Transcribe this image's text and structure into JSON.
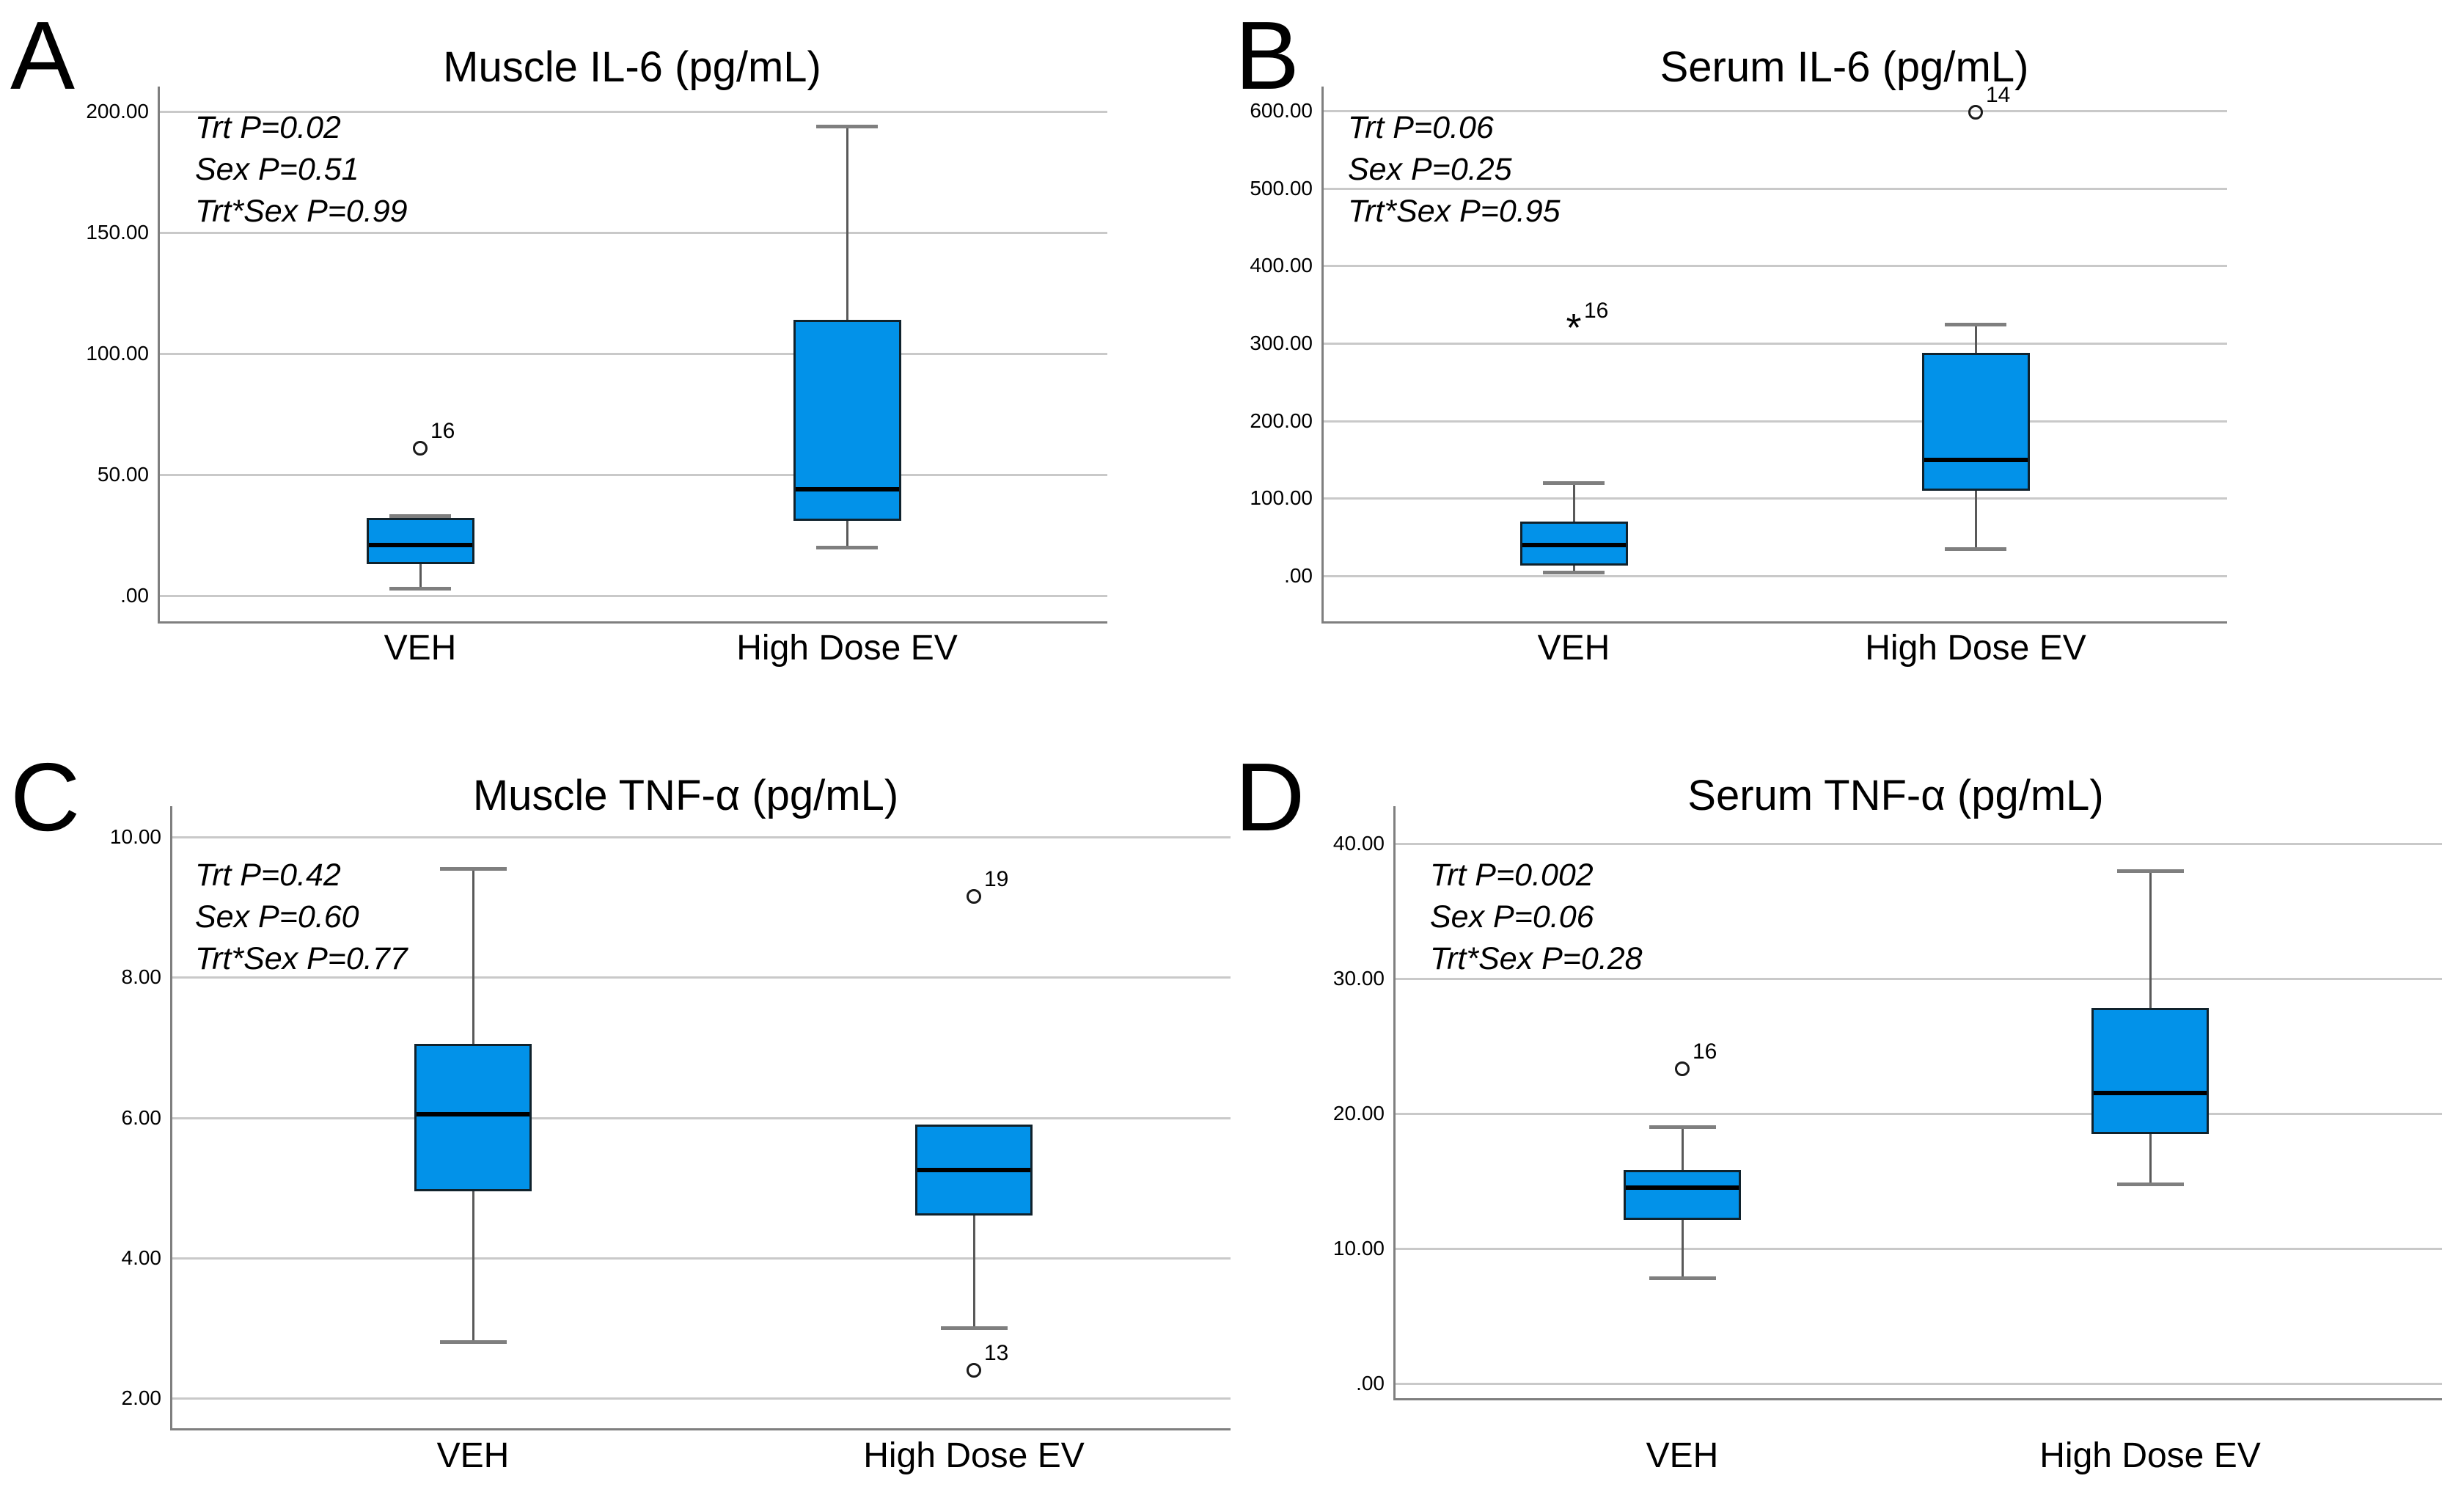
{
  "figure_caption": "",
  "colors": {
    "background": "#ffffff",
    "box_fill": "#0292e9",
    "box_border": "#10222c",
    "median_line": "#000000",
    "whisker": "#595959",
    "whisker_cap": "#7f7f7f",
    "gridline": "#c9c9c9",
    "axis_spine": "#7f7f7f",
    "text": "#000000"
  },
  "chart_data": [
    {
      "type": "box",
      "panel_letter": "A",
      "title": "Muscle IL-6 (pg/mL)",
      "stats_annotations": [
        "Trt P=0.02",
        "Sex P=0.51",
        "Trt*Sex P=0.99"
      ],
      "categories": [
        "VEH",
        "High Dose EV"
      ],
      "ylabel": "",
      "ylim": [
        0,
        200
      ],
      "grid": "horizontal",
      "yticks": [
        {
          "value": 0,
          "label": ".00"
        },
        {
          "value": 50,
          "label": "50.00"
        },
        {
          "value": 100,
          "label": "100.00"
        },
        {
          "value": 150,
          "label": "150.00"
        },
        {
          "value": 200,
          "label": "200.00"
        }
      ],
      "series": [
        {
          "category": "VEH",
          "whisker_low": 3,
          "q1": 13,
          "median": 21,
          "q3": 32,
          "whisker_high": 33,
          "outliers": [
            {
              "value": 61,
              "label": "16",
              "marker": "circle"
            }
          ]
        },
        {
          "category": "High Dose EV",
          "whisker_low": 20,
          "q1": 31,
          "median": 44,
          "q3": 114,
          "whisker_high": 194,
          "outliers": []
        }
      ]
    },
    {
      "type": "box",
      "panel_letter": "B",
      "title": "Serum IL-6 (pg/mL)",
      "stats_annotations": [
        "Trt P=0.06",
        "Sex P=0.25",
        "Trt*Sex P=0.95"
      ],
      "categories": [
        "VEH",
        "High Dose EV"
      ],
      "ylabel": "",
      "ylim": [
        0,
        600
      ],
      "grid": "horizontal",
      "yticks": [
        {
          "value": 0,
          "label": ".00"
        },
        {
          "value": 100,
          "label": "100.00"
        },
        {
          "value": 200,
          "label": "200.00"
        },
        {
          "value": 300,
          "label": "300.00"
        },
        {
          "value": 400,
          "label": "400.00"
        },
        {
          "value": 500,
          "label": "500.00"
        },
        {
          "value": 600,
          "label": "600.00"
        }
      ],
      "series": [
        {
          "category": "VEH",
          "whisker_low": 5,
          "q1": 13,
          "median": 40,
          "q3": 70,
          "whisker_high": 120,
          "outliers": [
            {
              "value": 320,
              "label": "16",
              "marker": "asterisk"
            }
          ]
        },
        {
          "category": "High Dose EV",
          "whisker_low": 35,
          "q1": 110,
          "median": 150,
          "q3": 288,
          "whisker_high": 325,
          "outliers": [
            {
              "value": 598,
              "label": "14",
              "marker": "circle"
            }
          ]
        }
      ]
    },
    {
      "type": "box",
      "panel_letter": "C",
      "title": "Muscle TNF-α (pg/mL)",
      "stats_annotations": [
        "Trt P=0.42",
        "Sex P=0.60",
        "Trt*Sex P=0.77"
      ],
      "categories": [
        "VEH",
        "High Dose EV"
      ],
      "ylabel": "",
      "ylim": [
        2,
        10
      ],
      "grid": "horizontal",
      "yticks": [
        {
          "value": 2,
          "label": "2.00"
        },
        {
          "value": 4,
          "label": "4.00"
        },
        {
          "value": 6,
          "label": "6.00"
        },
        {
          "value": 8,
          "label": "8.00"
        },
        {
          "value": 10,
          "label": "10.00"
        }
      ],
      "series": [
        {
          "category": "VEH",
          "whisker_low": 2.8,
          "q1": 4.95,
          "median": 6.05,
          "q3": 7.05,
          "whisker_high": 9.55,
          "outliers": []
        },
        {
          "category": "High Dose EV",
          "whisker_low": 3.0,
          "q1": 4.6,
          "median": 5.25,
          "q3": 5.9,
          "whisker_high": 5.9,
          "outliers": [
            {
              "value": 9.15,
              "label": "19",
              "marker": "circle"
            },
            {
              "value": 2.4,
              "label": "13",
              "marker": "circle"
            }
          ]
        }
      ]
    },
    {
      "type": "box",
      "panel_letter": "D",
      "title": "Serum TNF-α (pg/mL)",
      "stats_annotations": [
        "Trt P=0.002",
        "Sex P=0.06",
        "Trt*Sex P=0.28"
      ],
      "categories": [
        "VEH",
        "High Dose EV"
      ],
      "ylabel": "",
      "ylim": [
        0,
        40
      ],
      "grid": "horizontal",
      "yticks": [
        {
          "value": 0,
          "label": ".00"
        },
        {
          "value": 10,
          "label": "10.00"
        },
        {
          "value": 20,
          "label": "20.00"
        },
        {
          "value": 30,
          "label": "30.00"
        },
        {
          "value": 40,
          "label": "40.00"
        }
      ],
      "series": [
        {
          "category": "VEH",
          "whisker_low": 7.8,
          "q1": 12.1,
          "median": 14.5,
          "q3": 15.8,
          "whisker_high": 19,
          "outliers": [
            {
              "value": 23.3,
              "label": "16",
              "marker": "circle"
            }
          ]
        },
        {
          "category": "High Dose EV",
          "whisker_low": 14.8,
          "q1": 18.5,
          "median": 21.5,
          "q3": 27.8,
          "whisker_high": 38,
          "outliers": []
        }
      ]
    }
  ]
}
